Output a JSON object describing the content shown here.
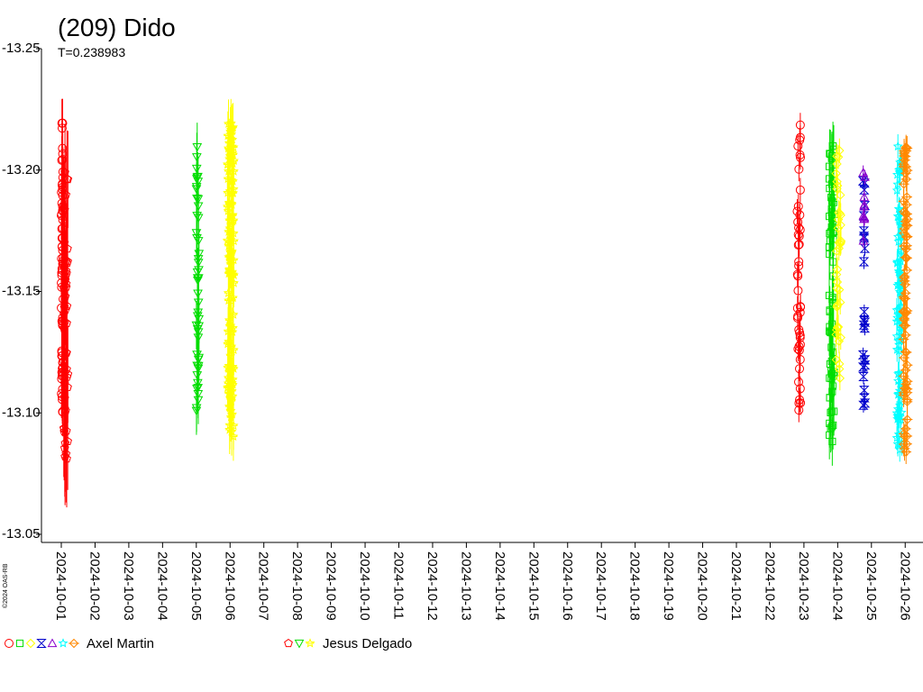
{
  "chart_data": {
    "type": "scatter",
    "title": "(209) Dido",
    "subtitle": "T=0.238983",
    "copyright": "©2024 OAS-RB",
    "y_ticks": [
      "-13.25",
      "-13.20",
      "-13.15",
      "-13.10",
      "-13.05"
    ],
    "ylim": [
      -13.25,
      -13.05
    ],
    "y_inverted": true,
    "x_ticks": [
      "2024-10-01",
      "2024-10-02",
      "2024-10-03",
      "2024-10-04",
      "2024-10-05",
      "2024-10-06",
      "2024-10-07",
      "2024-10-08",
      "2024-10-09",
      "2024-10-10",
      "2024-10-11",
      "2024-10-12",
      "2024-10-13",
      "2024-10-14",
      "2024-10-15",
      "2024-10-16",
      "2024-10-17",
      "2024-10-18",
      "2024-10-19",
      "2024-10-20",
      "2024-10-21",
      "2024-10-22",
      "2024-10-23",
      "2024-10-24",
      "2024-10-25",
      "2024-10-26"
    ],
    "grid": false,
    "legend_position": "bottom",
    "observers": [
      {
        "name": "Axel Martin",
        "markers": [
          {
            "shape": "circle",
            "color": "#ff0000"
          },
          {
            "shape": "square",
            "color": "#00dd00"
          },
          {
            "shape": "diamond",
            "color": "#ffff00"
          },
          {
            "shape": "hourglass",
            "color": "#0000cc"
          },
          {
            "shape": "triangle-up",
            "color": "#8800cc"
          },
          {
            "shape": "star",
            "color": "#00ffff"
          },
          {
            "shape": "diamond-cross",
            "color": "#ff8800"
          }
        ]
      },
      {
        "name": "Jesus Delgado",
        "markers": [
          {
            "shape": "pentagon",
            "color": "#ff0000"
          },
          {
            "shape": "triangle-down",
            "color": "#00dd00"
          },
          {
            "shape": "star-cross",
            "color": "#ffff00"
          }
        ]
      }
    ],
    "series": [
      {
        "day_offset": 0.0,
        "day_span": 0.06,
        "marker": "circle",
        "color": "#ff0000",
        "y_range": [
          -13.22,
          -13.1
        ],
        "count": 70,
        "error": 0.01
      },
      {
        "day_offset": 0.06,
        "day_span": 0.14,
        "marker": "pentagon",
        "color": "#ff0000",
        "y_range": [
          -13.2,
          -13.08
        ],
        "count": 50,
        "error": 0.02
      },
      {
        "day_offset": 4.0,
        "day_span": 0.08,
        "marker": "triangle-down",
        "color": "#00dd00",
        "y_range": [
          -13.21,
          -13.1
        ],
        "count": 50,
        "error": 0.01
      },
      {
        "day_offset": 4.92,
        "day_span": 0.2,
        "marker": "star-cross",
        "color": "#ffff00",
        "y_range": [
          -13.22,
          -13.09
        ],
        "count": 120,
        "error": 0.01
      },
      {
        "day_offset": 21.8,
        "day_span": 0.1,
        "marker": "circle",
        "color": "#ff0000",
        "y_range": [
          -13.22,
          -13.1
        ],
        "count": 45,
        "error": 0.005
      },
      {
        "day_offset": 22.75,
        "day_span": 0.15,
        "marker": "square",
        "color": "#00dd00",
        "y_range": [
          -13.21,
          -13.08
        ],
        "count": 70,
        "error": 0.01
      },
      {
        "day_offset": 22.95,
        "day_span": 0.15,
        "marker": "diamond",
        "color": "#ffff00",
        "y_range": [
          -13.21,
          -13.11
        ],
        "count": 40,
        "error": 0.005
      },
      {
        "day_offset": 23.75,
        "day_span": 0.06,
        "marker": "hourglass",
        "color": "#0000cc",
        "y_range": [
          -13.2,
          -13.1
        ],
        "count": 25,
        "error": 0.003
      },
      {
        "day_offset": 23.75,
        "day_span": 0.06,
        "marker": "triangle-up",
        "color": "#8800cc",
        "y_range": [
          -13.2,
          -13.17
        ],
        "count": 10,
        "error": 0.003
      },
      {
        "day_offset": 24.75,
        "day_span": 0.15,
        "marker": "star",
        "color": "#00ffff",
        "y_range": [
          -13.21,
          -13.08
        ],
        "count": 80,
        "error": 0.005
      },
      {
        "day_offset": 24.95,
        "day_span": 0.12,
        "marker": "diamond-cross",
        "color": "#ff8800",
        "y_range": [
          -13.21,
          -13.08
        ],
        "count": 80,
        "error": 0.005
      }
    ]
  }
}
